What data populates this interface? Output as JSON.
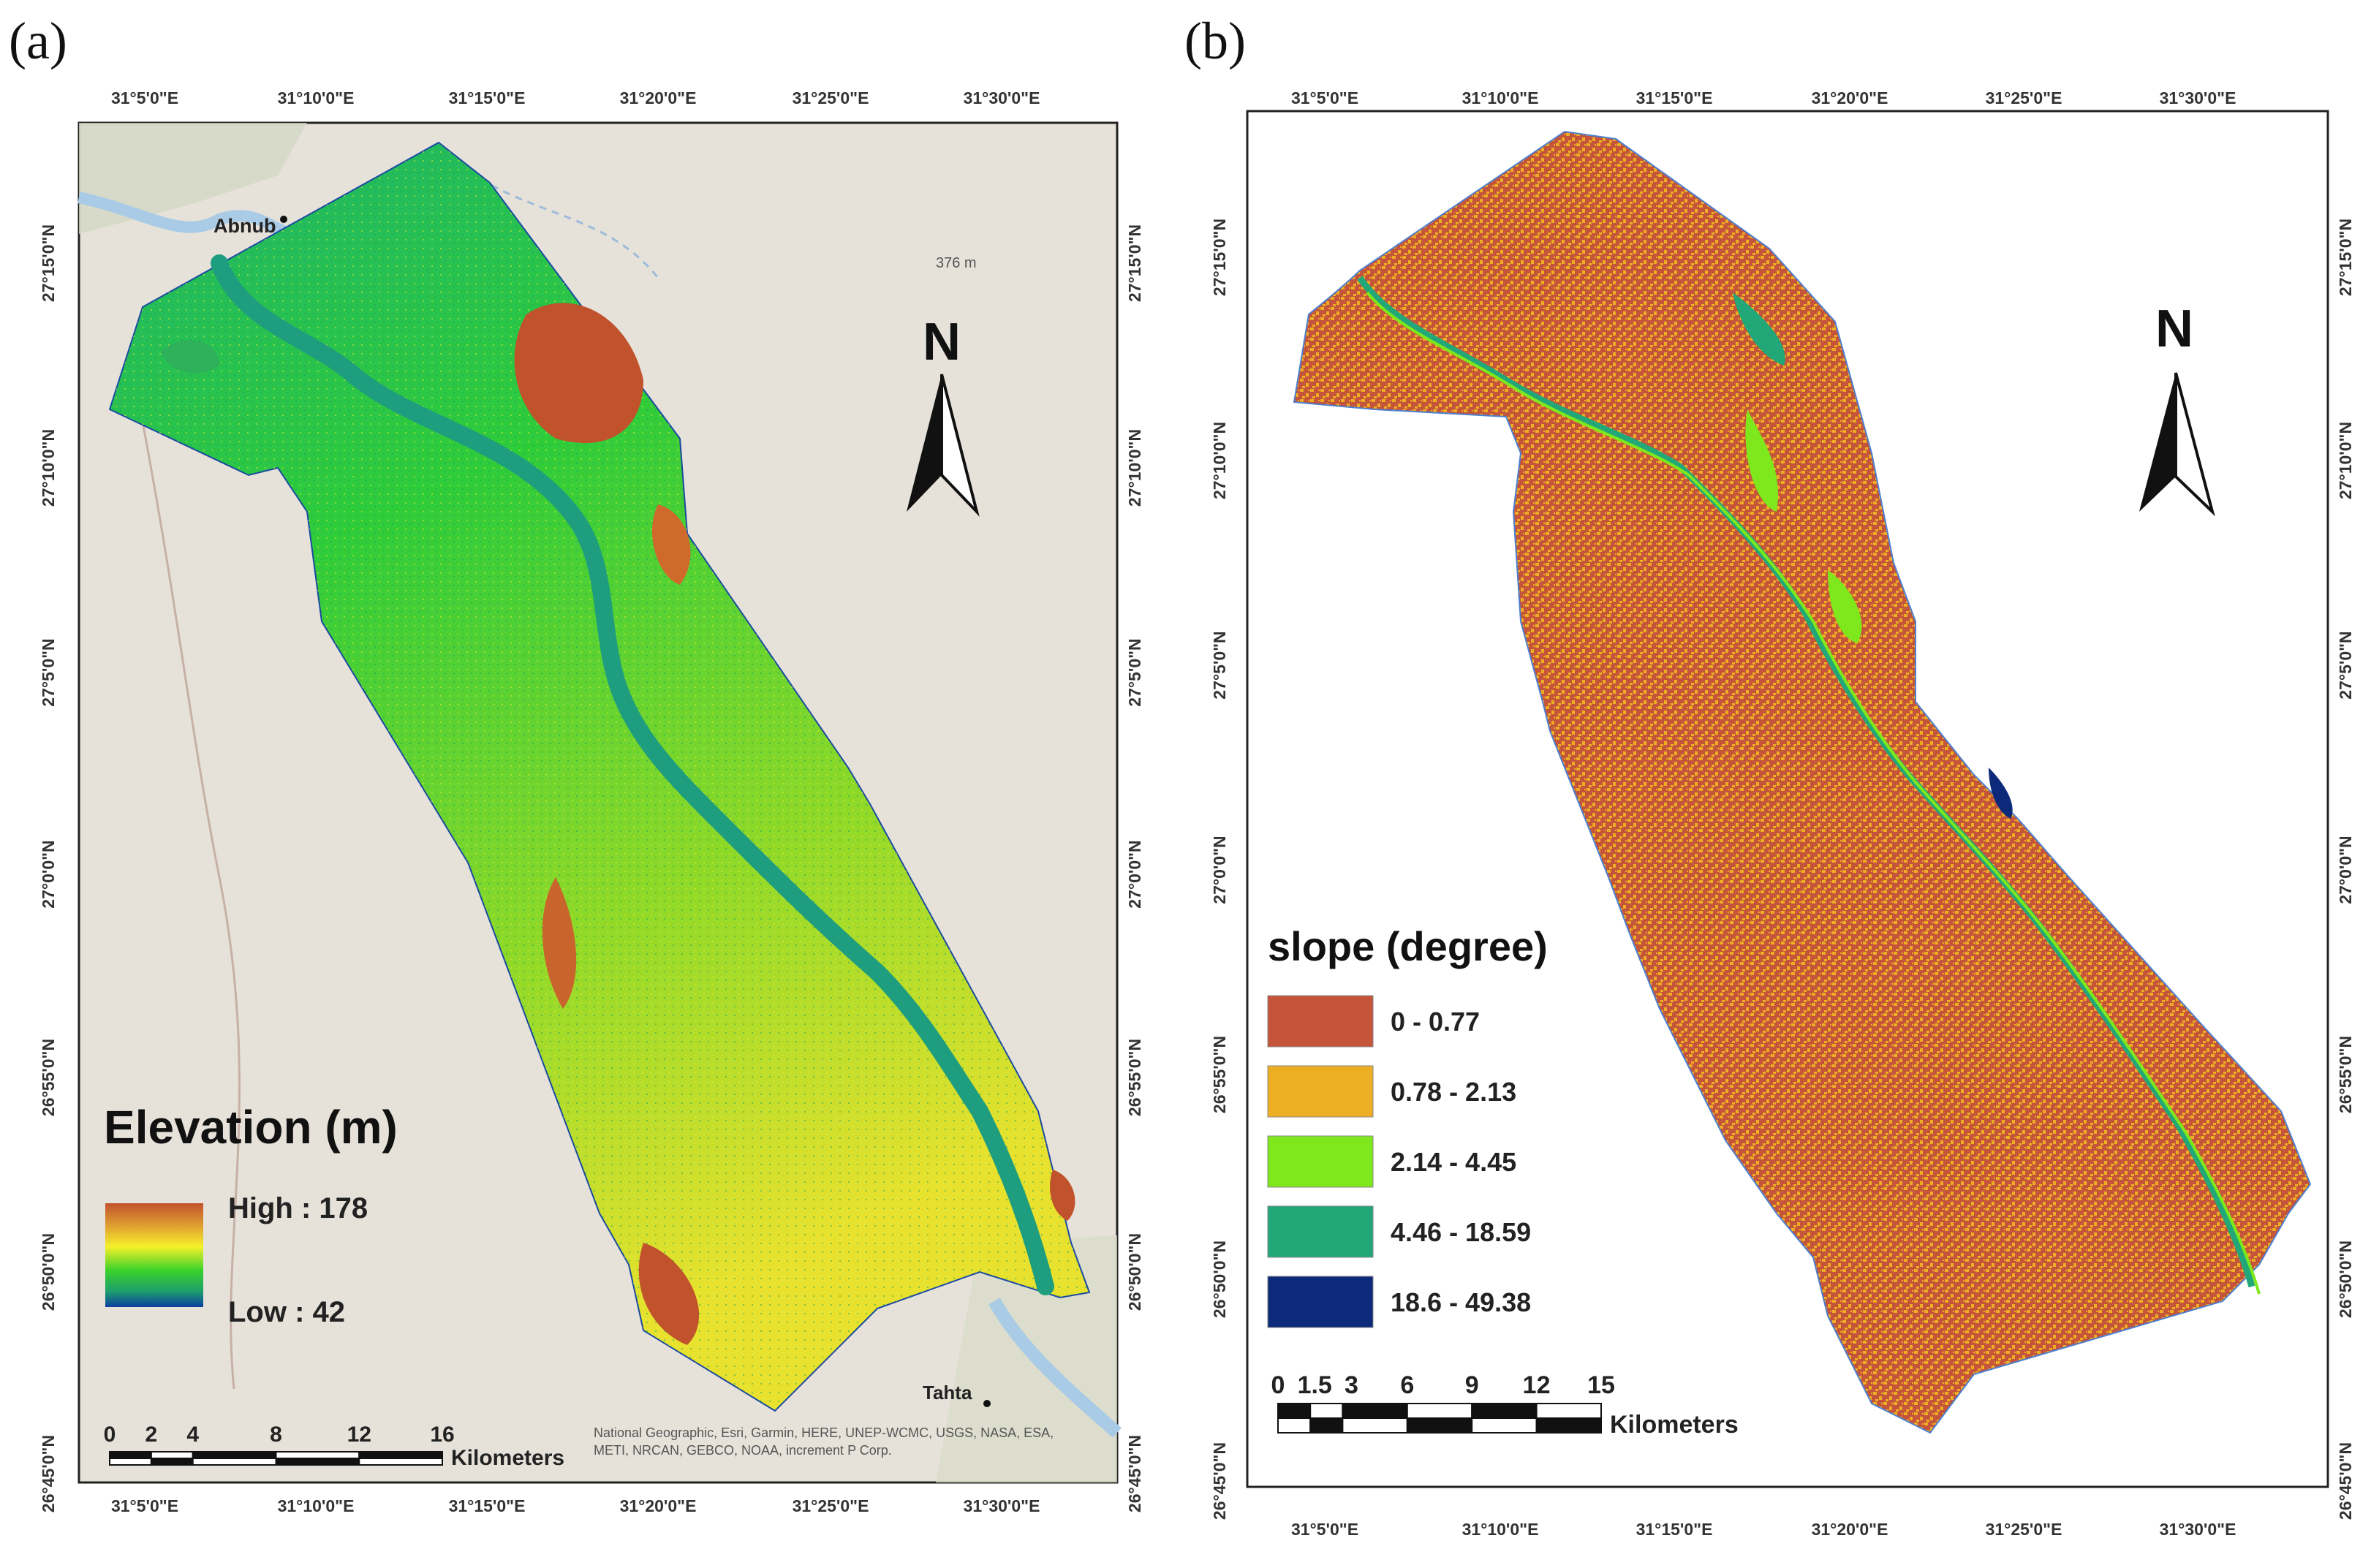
{
  "figure": {
    "panel_a": {
      "letter": "(a)",
      "lon_ticks": [
        "31°5'0\"E",
        "31°10'0\"E",
        "31°15'0\"E",
        "31°20'0\"E",
        "31°25'0\"E",
        "31°30'0\"E"
      ],
      "lat_ticks": [
        "27°15'0\"N",
        "27°10'0\"N",
        "27°5'0\"N",
        "27°0'0\"N",
        "26°55'0\"N",
        "26°50'0\"N",
        "26°45'0\"N"
      ],
      "places": {
        "abnub": "Abnub",
        "tahta": "Tahta",
        "peak": "376 m"
      },
      "north": "N",
      "legend": {
        "title": "Elevation (m)",
        "high": "High : 178",
        "low": "Low : 42"
      },
      "scale": {
        "labels": [
          "0",
          "2",
          "4",
          "8",
          "12",
          "16"
        ],
        "unit": "Kilometers"
      },
      "attribution": [
        "National Geographic, Esri, Garmin, HERE, UNEP-WCMC, USGS, NASA, ESA,",
        "METI, NRCAN, GEBCO, NOAA, increment P Corp."
      ]
    },
    "panel_b": {
      "letter": "(b)",
      "lon_ticks": [
        "31°5'0\"E",
        "31°10'0\"E",
        "31°15'0\"E",
        "31°20'0\"E",
        "31°25'0\"E",
        "31°30'0\"E"
      ],
      "lat_ticks": [
        "27°15'0\"N",
        "27°10'0\"N",
        "27°5'0\"N",
        "27°0'0\"N",
        "26°55'0\"N",
        "26°50'0\"N",
        "26°45'0\"N"
      ],
      "north": "N",
      "legend": {
        "title": "slope (degree)",
        "classes": [
          {
            "label": "0 - 0.77",
            "color": "#c5553a"
          },
          {
            "label": "0.78 - 2.13",
            "color": "#eeae24"
          },
          {
            "label": "2.14 - 4.45",
            "color": "#7ee81c"
          },
          {
            "label": "4.46 - 18.59",
            "color": "#22a878"
          },
          {
            "label": "18.6 - 49.38",
            "color": "#0d2a7a"
          }
        ]
      },
      "scale": {
        "labels": [
          "0",
          "1.5",
          "3",
          "6",
          "9",
          "12",
          "15"
        ],
        "unit": "Kilometers"
      }
    },
    "colors": {
      "elevation_ramp": [
        "#c0522c",
        "#e0a030",
        "#f5f12a",
        "#39d12a",
        "#1e9e6e",
        "#0a3fa0"
      ],
      "basemap": "#e6e2da",
      "river": "#2aa7a0"
    }
  }
}
